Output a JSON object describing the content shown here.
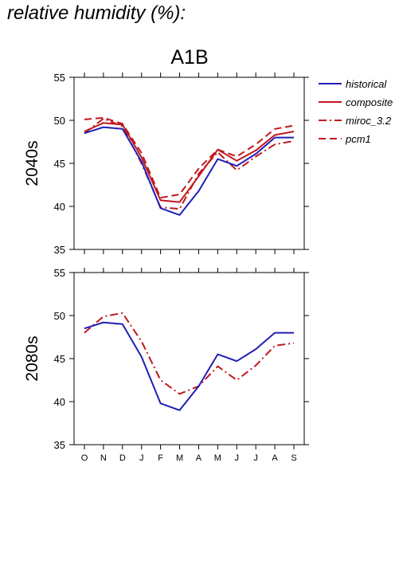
{
  "title": "relative humidity (%):",
  "scenario": "A1B",
  "colors": {
    "historical": "#1f1fb5",
    "model": "#c0181d"
  },
  "chart_data": [
    {
      "type": "line",
      "panel": "2040s",
      "ylabel": "2040s",
      "categories": [
        "O",
        "N",
        "D",
        "J",
        "F",
        "M",
        "A",
        "M",
        "J",
        "J",
        "A",
        "S"
      ],
      "ylim": [
        35,
        55
      ],
      "yticks": [
        35,
        40,
        45,
        50,
        55
      ],
      "grid": false,
      "legend": "right, outside",
      "series": [
        {
          "name": "historical",
          "style": "solid",
          "color": "#1f1fb5",
          "values": [
            48.5,
            49.2,
            49.0,
            45.2,
            39.8,
            39.0,
            41.8,
            45.5,
            44.7,
            46.1,
            48.0,
            48.0
          ]
        },
        {
          "name": "composite",
          "style": "solid",
          "color": "#c0181d",
          "values": [
            48.7,
            49.7,
            49.5,
            45.7,
            40.7,
            40.5,
            43.5,
            46.6,
            45.3,
            46.5,
            48.3,
            48.7
          ]
        },
        {
          "name": "miroc_3.2",
          "style": "dashdot",
          "color": "#c0181d",
          "values": [
            48.5,
            50.2,
            49.3,
            45.0,
            39.9,
            39.7,
            43.8,
            46.3,
            44.2,
            45.8,
            47.2,
            47.6
          ]
        },
        {
          "name": "pcm1",
          "style": "dashed",
          "color": "#c0181d",
          "values": [
            50.1,
            50.3,
            49.6,
            46.2,
            41.0,
            41.4,
            44.4,
            46.6,
            45.8,
            47.2,
            49.0,
            49.4
          ]
        }
      ]
    },
    {
      "type": "line",
      "panel": "2080s",
      "ylabel": "2080s",
      "categories": [
        "O",
        "N",
        "D",
        "J",
        "F",
        "M",
        "A",
        "M",
        "J",
        "J",
        "A",
        "S"
      ],
      "ylim": [
        35,
        55
      ],
      "yticks": [
        35,
        40,
        45,
        50,
        55
      ],
      "grid": false,
      "series": [
        {
          "name": "historical",
          "style": "solid",
          "color": "#1f1fb5",
          "values": [
            48.5,
            49.2,
            49.0,
            45.2,
            39.8,
            39.0,
            41.8,
            45.5,
            44.7,
            46.1,
            48.0,
            48.0
          ]
        },
        {
          "name": "miroc_3.2",
          "style": "dashdot",
          "color": "#c0181d",
          "values": [
            48.0,
            49.9,
            50.3,
            47.0,
            42.5,
            40.9,
            41.8,
            44.1,
            42.5,
            44.2,
            46.5,
            46.8
          ]
        }
      ]
    }
  ],
  "legend": [
    {
      "label": "historical",
      "style": "solid",
      "color": "#1f1fb5"
    },
    {
      "label": "composite",
      "style": "solid",
      "color": "#c0181d"
    },
    {
      "label": "miroc_3.2",
      "style": "dashdot",
      "color": "#c0181d"
    },
    {
      "label": "pcm1",
      "style": "dashed",
      "color": "#c0181d"
    }
  ]
}
